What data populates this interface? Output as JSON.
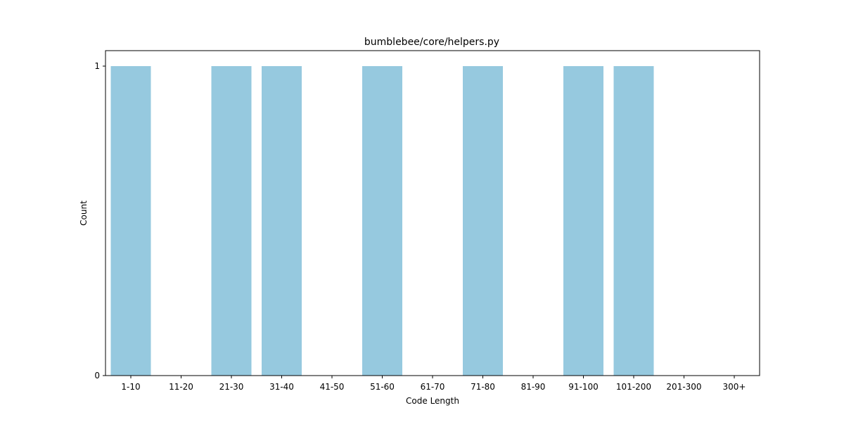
{
  "chart_data": {
    "type": "bar",
    "title": "bumblebee/core/helpers.py",
    "xlabel": "Code Length",
    "ylabel": "Count",
    "categories": [
      "1-10",
      "11-20",
      "21-30",
      "31-40",
      "41-50",
      "51-60",
      "61-70",
      "71-80",
      "81-90",
      "91-100",
      "101-200",
      "201-300",
      "300+"
    ],
    "values": [
      1,
      0,
      1,
      1,
      0,
      1,
      0,
      1,
      0,
      1,
      1,
      0,
      0
    ],
    "yticks": [
      0,
      1
    ],
    "ylim": [
      0,
      1.05
    ],
    "grid": false,
    "bar_color": "#96c9df"
  }
}
